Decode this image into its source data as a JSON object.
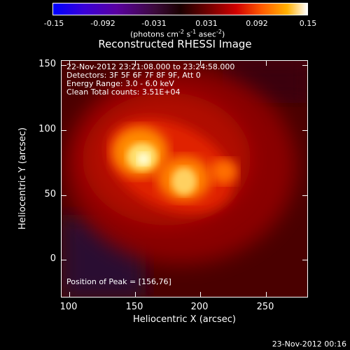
{
  "colorbar": {
    "ticks": [
      "-0.15",
      "-0.092",
      "-0.031",
      "0.031",
      "0.092",
      "0.15"
    ],
    "units_a": "(photons cm",
    "units_sup1": "-2",
    "units_b": " s",
    "units_sup2": "-1",
    "units_c": " asec",
    "units_sup3": "-2",
    "units_d": ")"
  },
  "title": "Reconstructed RHESSI Image",
  "info": {
    "line1": "22-Nov-2012 23:21:08.000 to 23:24:58.000",
    "line2": "Detectors: 3F 5F 6F 7F 8F 9F, Att 0",
    "line3": "Energy Range: 3.0 - 6.0 keV",
    "line4": "Clean    Total counts: 3.51E+04"
  },
  "peak_label": "Position of Peak = [156,76]",
  "axes": {
    "xlabel": "Heliocentric X (arcsec)",
    "ylabel": "Heliocentric Y (arcsec)",
    "xticks": [
      "100",
      "150",
      "200",
      "250"
    ],
    "yticks": [
      "150",
      "100",
      "50",
      "0"
    ]
  },
  "footer_time": "23-Nov-2012 00:16"
}
